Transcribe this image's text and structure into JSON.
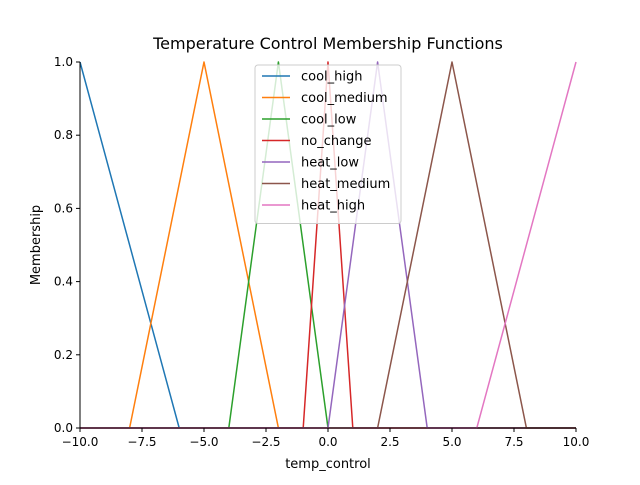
{
  "chart_data": {
    "type": "line",
    "title": "Temperature Control Membership Functions",
    "xlabel": "temp_control",
    "ylabel": "Membership",
    "xlim": [
      -10,
      10
    ],
    "ylim": [
      0,
      1
    ],
    "x_ticks": [
      -10,
      -7.5,
      -5,
      -2.5,
      0,
      2.5,
      5,
      7.5,
      10
    ],
    "x_tick_labels": [
      "−10.0",
      "−7.5",
      "−5.0",
      "−2.5",
      "0.0",
      "2.5",
      "5.0",
      "7.5",
      "10.0"
    ],
    "y_ticks": [
      0,
      0.2,
      0.4,
      0.6,
      0.8,
      1.0
    ],
    "y_tick_labels": [
      "0.0",
      "0.2",
      "0.4",
      "0.6",
      "0.8",
      "1.0"
    ],
    "grid": false,
    "legend_position": "top-center",
    "series": [
      {
        "name": "cool_high",
        "color": "#1f77b4",
        "x": [
          -10,
          -6,
          10
        ],
        "y": [
          1,
          0,
          0
        ]
      },
      {
        "name": "cool_medium",
        "color": "#ff7f0e",
        "x": [
          -10,
          -8,
          -5,
          -2,
          10
        ],
        "y": [
          0,
          0,
          1,
          0,
          0
        ]
      },
      {
        "name": "cool_low",
        "color": "#2ca02c",
        "x": [
          -10,
          -4,
          -2,
          0,
          10
        ],
        "y": [
          0,
          0,
          1,
          0,
          0
        ]
      },
      {
        "name": "no_change",
        "color": "#d62728",
        "x": [
          -10,
          -1,
          0,
          1,
          10
        ],
        "y": [
          0,
          0,
          1,
          0,
          0
        ]
      },
      {
        "name": "heat_low",
        "color": "#9467bd",
        "x": [
          -10,
          0,
          2,
          4,
          10
        ],
        "y": [
          0,
          0,
          1,
          0,
          0
        ]
      },
      {
        "name": "heat_medium",
        "color": "#8c564b",
        "x": [
          -10,
          2,
          5,
          8,
          10
        ],
        "y": [
          0,
          0,
          1,
          0,
          0
        ]
      },
      {
        "name": "heat_high",
        "color": "#e377c2",
        "x": [
          -10,
          6,
          10
        ],
        "y": [
          0,
          0,
          1
        ]
      }
    ]
  }
}
